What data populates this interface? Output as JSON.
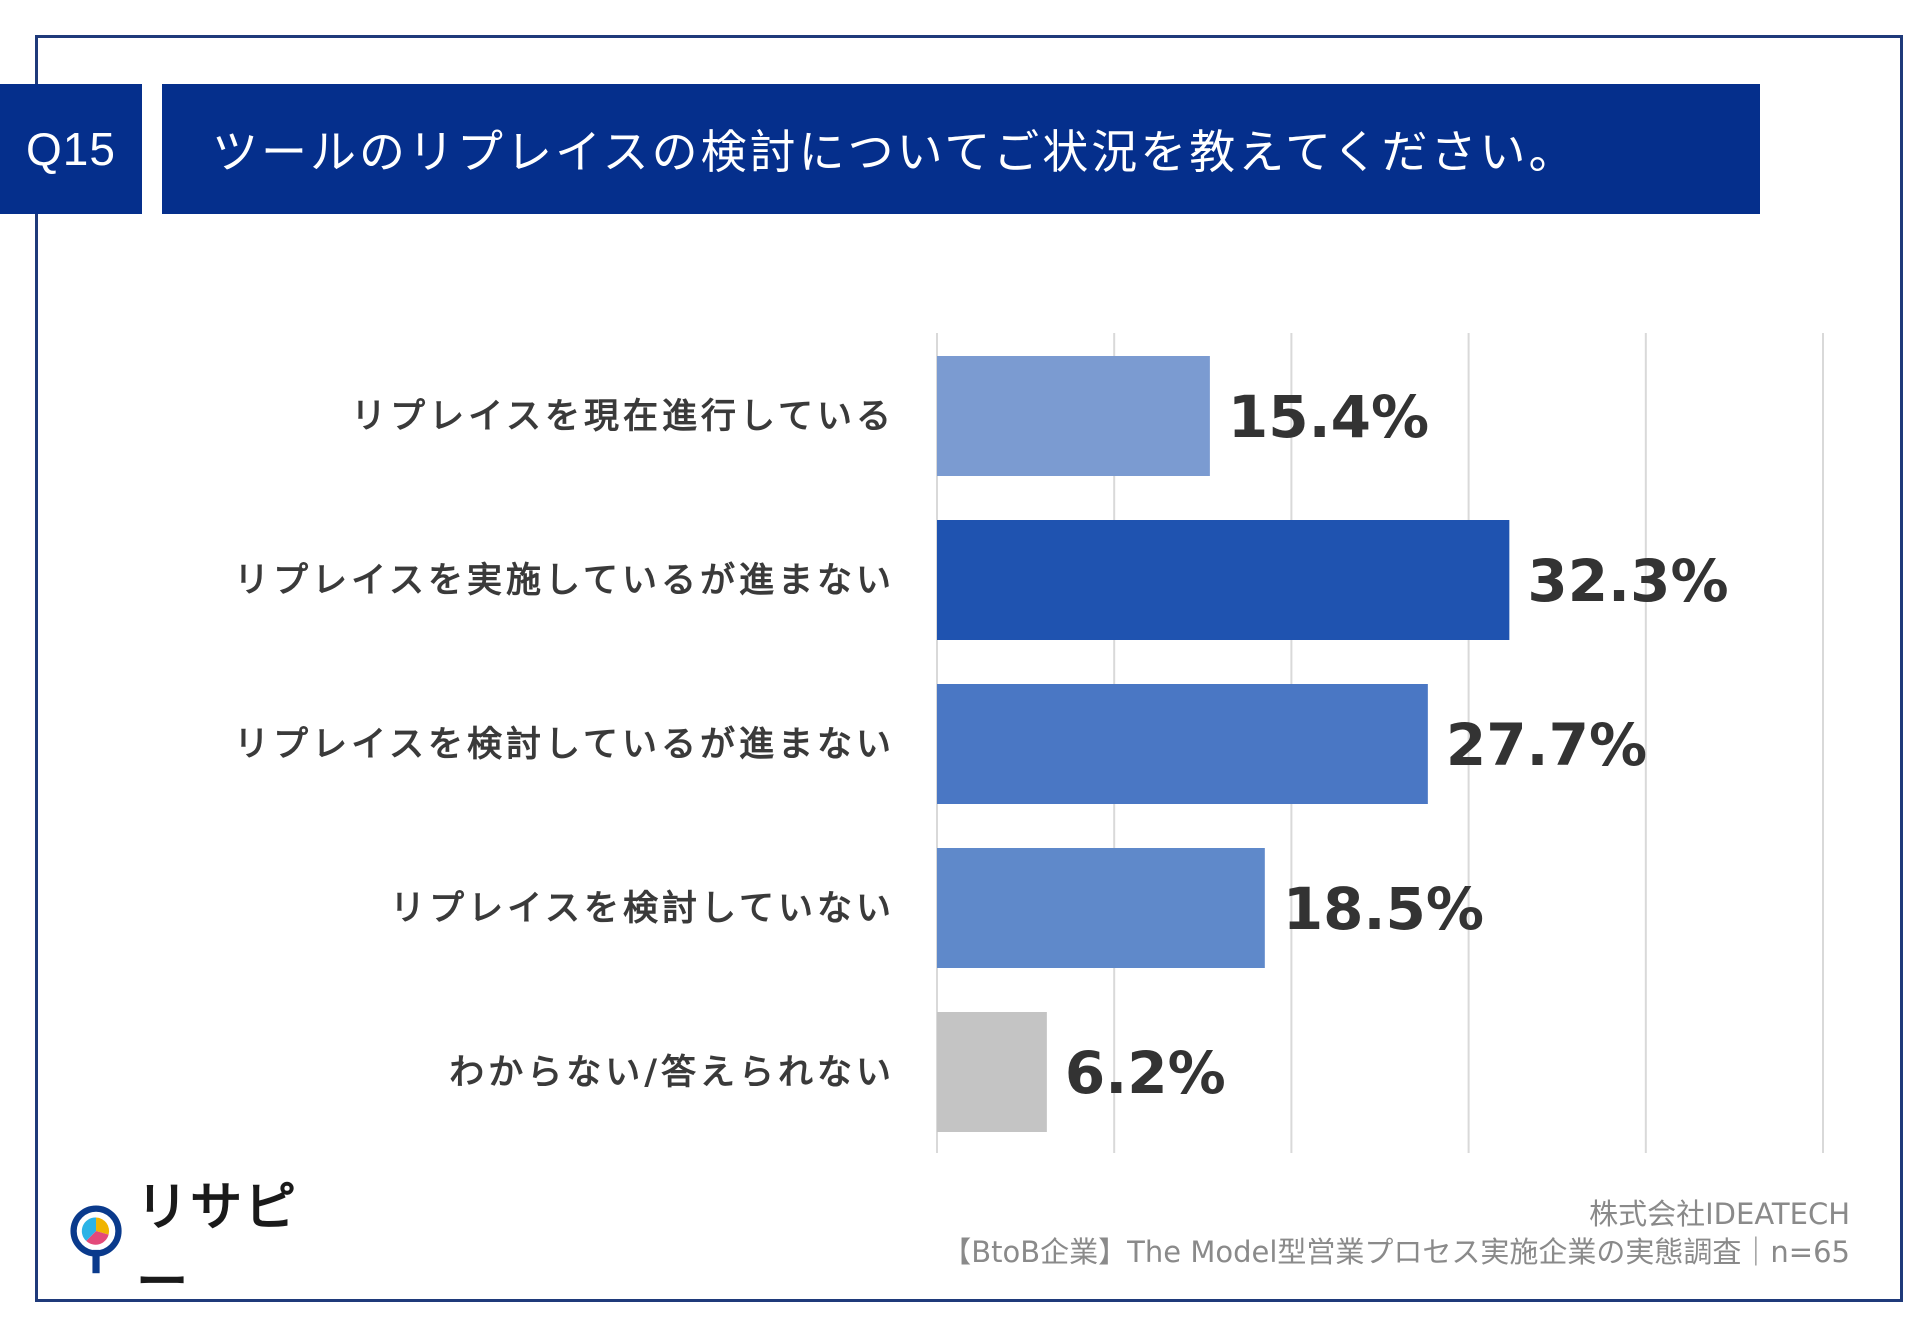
{
  "header": {
    "question_number": "Q15",
    "title": "ツールのリプレイスの検討についてご状況を教えてください。"
  },
  "chart_data": {
    "type": "bar",
    "orientation": "horizontal",
    "categories": [
      "リプレイスを現在進行している",
      "リプレイスを実施しているが進まない",
      "リプレイスを検討しているが進まない",
      "リプレイスを検討していない",
      "わからない/答えられない"
    ],
    "values": [
      15.4,
      32.3,
      27.7,
      18.5,
      6.2
    ],
    "value_labels": [
      "15.4%",
      "32.3%",
      "27.7%",
      "18.5%",
      "6.2%"
    ],
    "colors": [
      "#7b9bd1",
      "#1f53b0",
      "#4a77c4",
      "#5f89ca",
      "#c4c4c4"
    ],
    "xlim": [
      0,
      50
    ],
    "grid": true,
    "title": "ツールのリプレイスの検討についてご状況を教えてください。"
  },
  "footer": {
    "company": "株式会社IDEATECH",
    "survey": "【BtoB企業】The Model型営業プロセス実施企業の実態調査｜n=65"
  },
  "logo": {
    "text": "リサピー",
    "colors": [
      "#0a3a8c",
      "#f0b400",
      "#e34a7a",
      "#2bb3e6"
    ]
  }
}
